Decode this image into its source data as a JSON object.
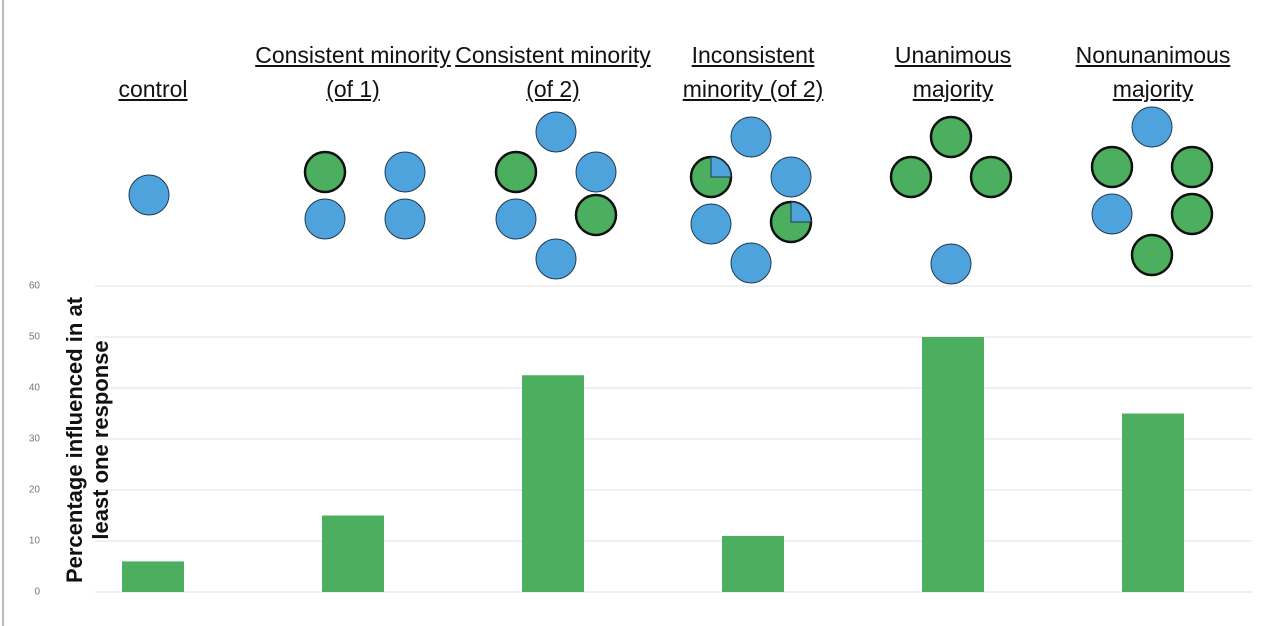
{
  "chart_data": {
    "type": "bar",
    "ylabel": "Percentage influenced in at least one response",
    "categories": [
      "control",
      "Consistent minority (of 1)",
      "Consistent minority (of 2)",
      "Inconsistent minority (of 2)",
      "Unanimous majority",
      "Nonunanimous majority"
    ],
    "values": [
      6,
      15,
      42.5,
      11,
      50,
      35
    ],
    "color": "#4caf5f",
    "ylim": [
      0,
      60
    ],
    "yticks": [
      0,
      10,
      20,
      30,
      40,
      50,
      60
    ],
    "grid": true
  }
}
